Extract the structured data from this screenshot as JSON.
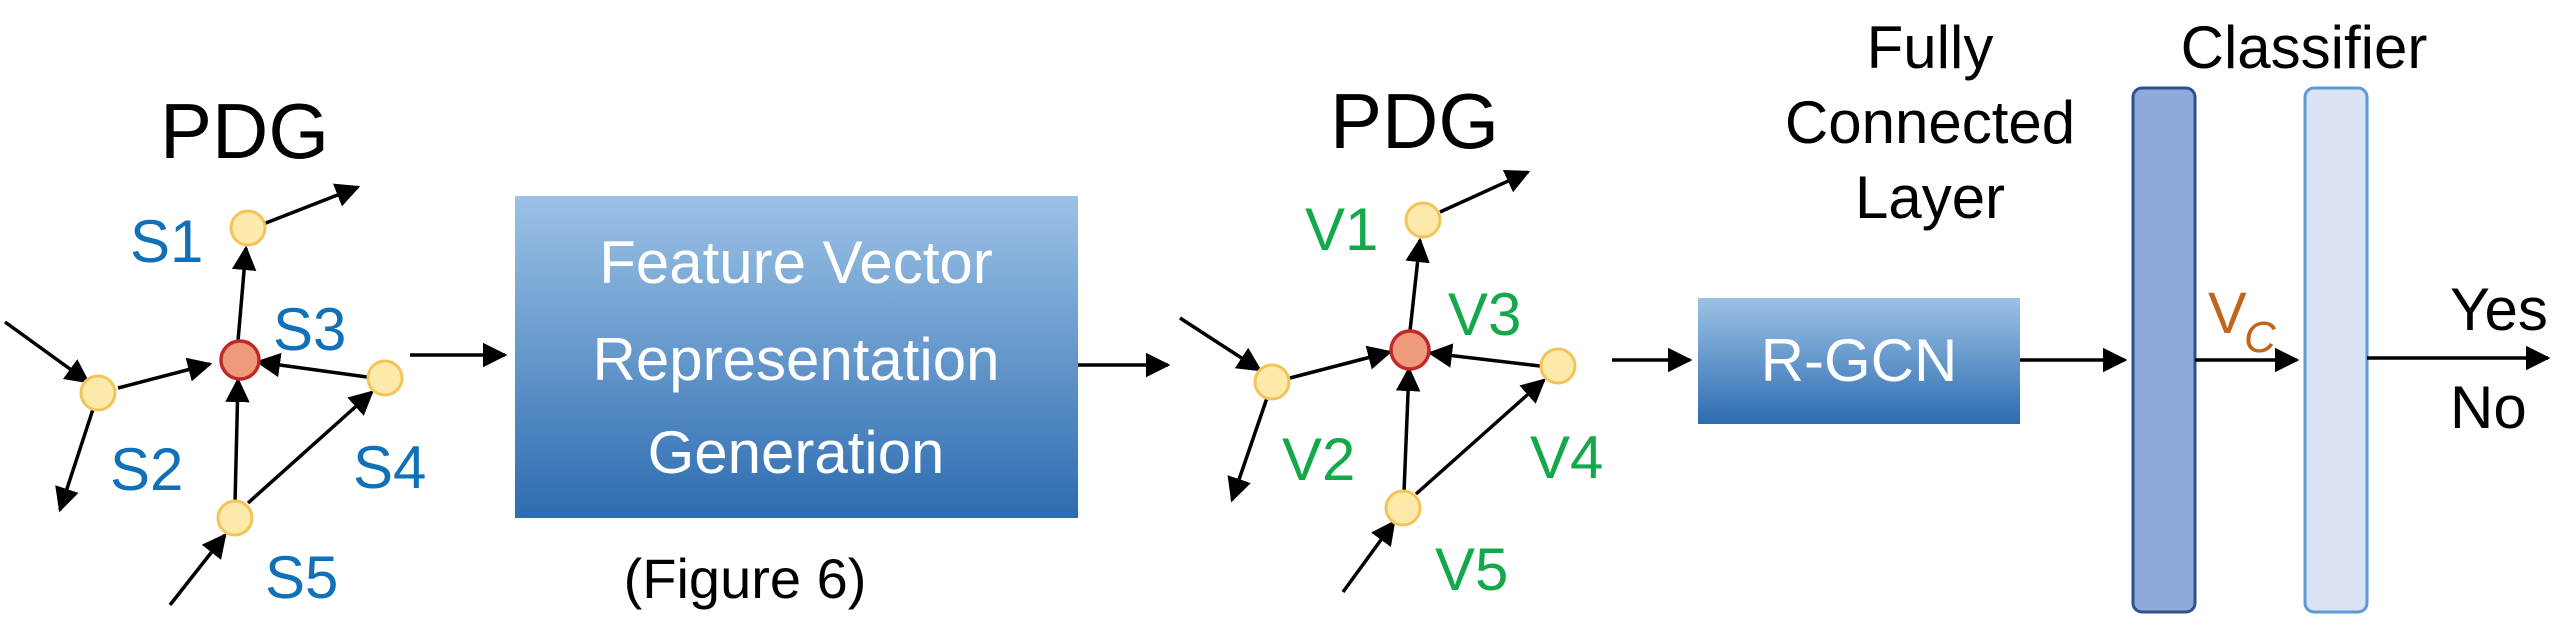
{
  "left_graph": {
    "title": "PDG",
    "labels": {
      "s1": "S1",
      "s2": "S2",
      "s3": "S3",
      "s4": "S4",
      "s5": "S5"
    }
  },
  "feature_box": {
    "line1": "Feature Vector",
    "line2": "Representation",
    "line3": "Generation",
    "caption": "(Figure 6)"
  },
  "right_graph": {
    "title": "PDG",
    "labels": {
      "v1": "V1",
      "v2": "V2",
      "v3": "V3",
      "v4": "V4",
      "v5": "V5"
    }
  },
  "rgcn_box": {
    "label": "R-GCN"
  },
  "fc_layer": {
    "line1": "Fully",
    "line2": "Connected",
    "line3": "Layer"
  },
  "classifier": {
    "label": "Classifier"
  },
  "vc": {
    "base": "V",
    "sub": "C"
  },
  "outputs": {
    "yes": "Yes",
    "no": "No"
  },
  "colors": {
    "node_fill": "#fde9a9",
    "node_stroke": "#f2c45a",
    "center_fill": "#f09a7c",
    "center_stroke": "#c0292a",
    "s_label": "#1070b8",
    "v_label": "#13a84a",
    "vc_label": "#c0661b",
    "box_top": "#9cc2e6",
    "box_bottom": "#2d6cb0",
    "fc_fill": "#8eaadb",
    "classifier_fill": "#dae3f3"
  }
}
